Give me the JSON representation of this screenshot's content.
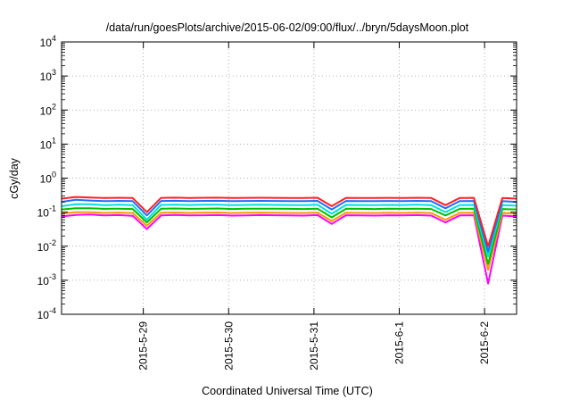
{
  "chart_data": {
    "type": "line",
    "title": "/data/run/goesPlots/archive/2015-06-02/09:00/flux/../bryn/5daysMoon.plot",
    "xlabel": "Coordinated Universal Time (UTC)",
    "ylabel": "cGy/day",
    "yscale": "log",
    "ylim": [
      0.0001,
      10000
    ],
    "xlim": [
      "2015-05-28 01:00",
      "2015-06-02 09:00"
    ],
    "grid": true,
    "y_ticks": [
      {
        "base": "10",
        "exp": "-4"
      },
      {
        "base": "10",
        "exp": "-3"
      },
      {
        "base": "10",
        "exp": "-2"
      },
      {
        "base": "10",
        "exp": "-1"
      },
      {
        "base": "10",
        "exp": "0"
      },
      {
        "base": "10",
        "exp": "1"
      },
      {
        "base": "10",
        "exp": "2"
      },
      {
        "base": "10",
        "exp": "3"
      },
      {
        "base": "10",
        "exp": "4"
      }
    ],
    "x_ticks": [
      "2015-5-29",
      "2015-5-30",
      "2015-5-31",
      "2015-6-1",
      "2015-6-2"
    ],
    "x_tick_dates": [
      "2015-05-29 00:00",
      "2015-05-30 00:00",
      "2015-05-31 00:00",
      "2015-06-01 00:00",
      "2015-06-02 00:00"
    ],
    "x_hours": [
      0,
      4,
      8,
      12,
      16,
      20,
      24,
      28,
      32,
      36,
      40,
      44,
      48,
      52,
      56,
      60,
      64,
      68,
      72,
      76,
      80,
      84,
      88,
      92,
      96,
      100,
      104,
      108,
      112,
      116,
      120,
      124,
      128
    ],
    "series": [
      {
        "color": "#ff00ff",
        "values": [
          0.075,
          0.083,
          0.085,
          0.08,
          0.082,
          0.078,
          0.032,
          0.08,
          0.083,
          0.08,
          0.081,
          0.082,
          0.079,
          0.08,
          0.082,
          0.081,
          0.08,
          0.079,
          0.082,
          0.045,
          0.081,
          0.08,
          0.079,
          0.081,
          0.08,
          0.082,
          0.079,
          0.05,
          0.08,
          0.081,
          0.0008,
          0.079,
          0.075
        ]
      },
      {
        "color": "#ff9900",
        "values": [
          0.09,
          0.1,
          0.1,
          0.095,
          0.097,
          0.094,
          0.04,
          0.096,
          0.098,
          0.095,
          0.097,
          0.098,
          0.094,
          0.096,
          0.097,
          0.096,
          0.095,
          0.094,
          0.097,
          0.055,
          0.096,
          0.095,
          0.094,
          0.096,
          0.095,
          0.097,
          0.094,
          0.06,
          0.095,
          0.096,
          0.002,
          0.094,
          0.09
        ]
      },
      {
        "color": "#00c000",
        "values": [
          0.12,
          0.13,
          0.13,
          0.125,
          0.127,
          0.124,
          0.05,
          0.126,
          0.128,
          0.125,
          0.127,
          0.128,
          0.124,
          0.126,
          0.127,
          0.126,
          0.125,
          0.124,
          0.127,
          0.07,
          0.126,
          0.125,
          0.124,
          0.126,
          0.125,
          0.127,
          0.124,
          0.08,
          0.125,
          0.126,
          0.003,
          0.124,
          0.12
        ]
      },
      {
        "color": "#00e0e0",
        "values": [
          0.15,
          0.17,
          0.17,
          0.16,
          0.165,
          0.16,
          0.06,
          0.163,
          0.166,
          0.162,
          0.165,
          0.166,
          0.16,
          0.163,
          0.165,
          0.163,
          0.162,
          0.16,
          0.165,
          0.09,
          0.163,
          0.162,
          0.16,
          0.163,
          0.162,
          0.165,
          0.16,
          0.1,
          0.162,
          0.163,
          0.005,
          0.16,
          0.155
        ]
      },
      {
        "color": "#1e6fff",
        "values": [
          0.2,
          0.23,
          0.22,
          0.21,
          0.215,
          0.21,
          0.08,
          0.213,
          0.216,
          0.212,
          0.215,
          0.216,
          0.21,
          0.213,
          0.215,
          0.213,
          0.212,
          0.21,
          0.215,
          0.12,
          0.213,
          0.212,
          0.21,
          0.213,
          0.212,
          0.215,
          0.21,
          0.13,
          0.212,
          0.213,
          0.007,
          0.21,
          0.2
        ]
      },
      {
        "color": "#ff2020",
        "values": [
          0.25,
          0.28,
          0.27,
          0.26,
          0.265,
          0.26,
          0.1,
          0.263,
          0.266,
          0.262,
          0.265,
          0.266,
          0.26,
          0.263,
          0.265,
          0.263,
          0.262,
          0.26,
          0.265,
          0.15,
          0.263,
          0.262,
          0.26,
          0.263,
          0.262,
          0.265,
          0.26,
          0.16,
          0.262,
          0.263,
          0.01,
          0.26,
          0.25
        ]
      }
    ]
  }
}
